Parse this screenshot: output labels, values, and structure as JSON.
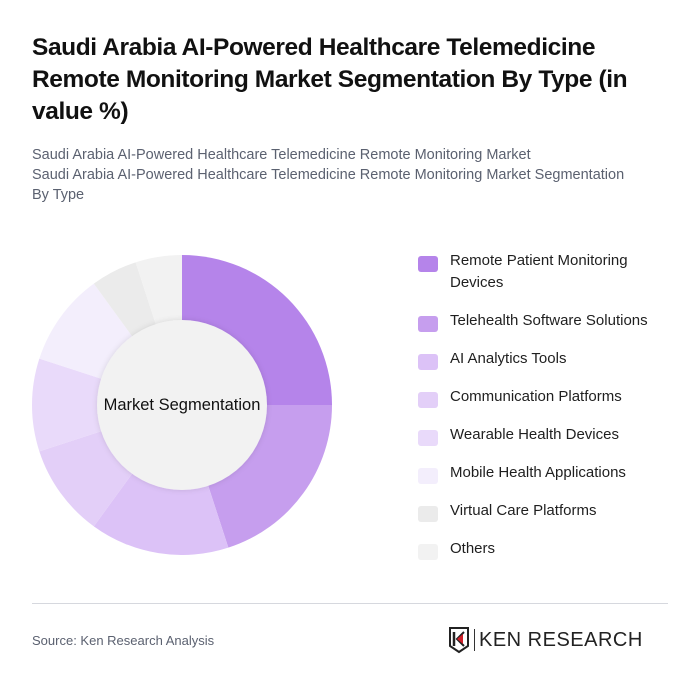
{
  "header": {
    "title": "Saudi Arabia AI-Powered Healthcare Telemedicine Remote Monitoring Market Segmentation By Type (in value %)",
    "subtitle_line1": "Saudi Arabia AI-Powered Healthcare Telemedicine Remote Monitoring Market",
    "subtitle_line2": "Saudi Arabia AI-Powered Healthcare Telemedicine Remote Monitoring Market Segmentation By Type"
  },
  "chart": {
    "center_label": "Market Segmentation"
  },
  "legend": {
    "items": [
      {
        "label": "Remote Patient Monitoring Devices",
        "color": "#B584EA"
      },
      {
        "label": "Telehealth Software Solutions",
        "color": "#C69EEE"
      },
      {
        "label": "AI Analytics Tools",
        "color": "#DCC2F7"
      },
      {
        "label": "Communication Platforms",
        "color": "#E3CFF8"
      },
      {
        "label": "Wearable Health Devices",
        "color": "#E9DAFA"
      },
      {
        "label": "Mobile Health Applications",
        "color": "#F3EEFC"
      },
      {
        "label": "Virtual Care Platforms",
        "color": "#EBEBEB"
      },
      {
        "label": "Others",
        "color": "#F2F2F2"
      }
    ]
  },
  "footer": {
    "source": "Source: Ken Research Analysis",
    "logo_text": "KEN RESEARCH"
  },
  "chart_data": {
    "type": "pie",
    "subtype": "donut",
    "title": "Saudi Arabia AI-Powered Healthcare Telemedicine Remote Monitoring Market Segmentation By Type (in value %)",
    "center_label": "Market Segmentation",
    "categories": [
      "Remote Patient Monitoring Devices",
      "Telehealth Software Solutions",
      "AI Analytics Tools",
      "Communication Platforms",
      "Wearable Health Devices",
      "Mobile Health Applications",
      "Virtual Care Platforms",
      "Others"
    ],
    "values": [
      25,
      20,
      15,
      10,
      10,
      10,
      5,
      5
    ],
    "colors": [
      "#B584EA",
      "#C69EEE",
      "#DCC2F7",
      "#E3CFF8",
      "#E9DAFA",
      "#F3EEFC",
      "#EBEBEB",
      "#F2F2F2"
    ],
    "unit": "%",
    "start_angle": "12 o'clock, clockwise",
    "legend_position": "right"
  }
}
